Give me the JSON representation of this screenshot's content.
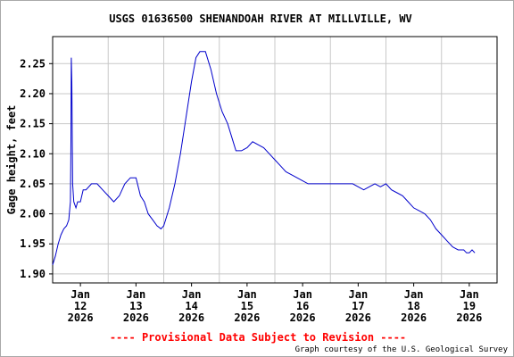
{
  "chart_data": {
    "type": "line",
    "title": "USGS 01636500 SHENANDOAH RIVER AT MILLVILLE, WV",
    "xlabel": "",
    "ylabel": "Gage height, feet",
    "ylim": [
      1.885,
      2.295
    ],
    "yticks": [
      1.9,
      1.95,
      2.0,
      2.05,
      2.1,
      2.15,
      2.2,
      2.25
    ],
    "ytick_labels": [
      "1.90",
      "1.95",
      "2.00",
      "2.05",
      "2.10",
      "2.15",
      "2.20",
      "2.25"
    ],
    "xlim": [
      0,
      8.0
    ],
    "xticks": [
      {
        "value": 0.5,
        "lines": [
          "Jan",
          "12",
          "2026"
        ]
      },
      {
        "value": 1.5,
        "lines": [
          "Jan",
          "13",
          "2026"
        ]
      },
      {
        "value": 2.5,
        "lines": [
          "Jan",
          "14",
          "2026"
        ]
      },
      {
        "value": 3.5,
        "lines": [
          "Jan",
          "15",
          "2026"
        ]
      },
      {
        "value": 4.5,
        "lines": [
          "Jan",
          "16",
          "2026"
        ]
      },
      {
        "value": 5.5,
        "lines": [
          "Jan",
          "17",
          "2026"
        ]
      },
      {
        "value": 6.5,
        "lines": [
          "Jan",
          "18",
          "2026"
        ]
      },
      {
        "value": 7.5,
        "lines": [
          "Jan",
          "19",
          "2026"
        ]
      }
    ],
    "grid": true,
    "line_color": "#0000cc",
    "series": [
      {
        "name": "",
        "points": [
          [
            0.0,
            1.915
          ],
          [
            0.05,
            1.93
          ],
          [
            0.1,
            1.95
          ],
          [
            0.15,
            1.965
          ],
          [
            0.2,
            1.975
          ],
          [
            0.25,
            1.98
          ],
          [
            0.29,
            1.99
          ],
          [
            0.32,
            2.02
          ],
          [
            0.33,
            2.12
          ],
          [
            0.335,
            2.26
          ],
          [
            0.345,
            2.22
          ],
          [
            0.36,
            2.05
          ],
          [
            0.38,
            2.02
          ],
          [
            0.42,
            2.01
          ],
          [
            0.45,
            2.02
          ],
          [
            0.5,
            2.02
          ],
          [
            0.55,
            2.04
          ],
          [
            0.6,
            2.04
          ],
          [
            0.7,
            2.05
          ],
          [
            0.8,
            2.05
          ],
          [
            0.9,
            2.04
          ],
          [
            1.0,
            2.03
          ],
          [
            1.1,
            2.02
          ],
          [
            1.2,
            2.03
          ],
          [
            1.3,
            2.05
          ],
          [
            1.4,
            2.06
          ],
          [
            1.5,
            2.06
          ],
          [
            1.58,
            2.03
          ],
          [
            1.65,
            2.02
          ],
          [
            1.72,
            2.0
          ],
          [
            1.8,
            1.99
          ],
          [
            1.88,
            1.98
          ],
          [
            1.95,
            1.975
          ],
          [
            2.0,
            1.98
          ],
          [
            2.1,
            2.01
          ],
          [
            2.2,
            2.05
          ],
          [
            2.3,
            2.1
          ],
          [
            2.4,
            2.16
          ],
          [
            2.5,
            2.22
          ],
          [
            2.58,
            2.26
          ],
          [
            2.65,
            2.27
          ],
          [
            2.75,
            2.27
          ],
          [
            2.85,
            2.24
          ],
          [
            2.95,
            2.2
          ],
          [
            3.05,
            2.17
          ],
          [
            3.15,
            2.15
          ],
          [
            3.25,
            2.12
          ],
          [
            3.3,
            2.105
          ],
          [
            3.4,
            2.105
          ],
          [
            3.5,
            2.11
          ],
          [
            3.6,
            2.12
          ],
          [
            3.7,
            2.115
          ],
          [
            3.8,
            2.11
          ],
          [
            3.9,
            2.1
          ],
          [
            4.0,
            2.09
          ],
          [
            4.1,
            2.08
          ],
          [
            4.2,
            2.07
          ],
          [
            4.3,
            2.065
          ],
          [
            4.4,
            2.06
          ],
          [
            4.5,
            2.055
          ],
          [
            4.6,
            2.05
          ],
          [
            4.7,
            2.05
          ],
          [
            4.8,
            2.05
          ],
          [
            4.9,
            2.05
          ],
          [
            5.0,
            2.05
          ],
          [
            5.1,
            2.05
          ],
          [
            5.2,
            2.05
          ],
          [
            5.3,
            2.05
          ],
          [
            5.4,
            2.05
          ],
          [
            5.5,
            2.045
          ],
          [
            5.6,
            2.04
          ],
          [
            5.7,
            2.045
          ],
          [
            5.8,
            2.05
          ],
          [
            5.9,
            2.045
          ],
          [
            6.0,
            2.05
          ],
          [
            6.1,
            2.04
          ],
          [
            6.2,
            2.035
          ],
          [
            6.3,
            2.03
          ],
          [
            6.4,
            2.02
          ],
          [
            6.5,
            2.01
          ],
          [
            6.6,
            2.005
          ],
          [
            6.7,
            2.0
          ],
          [
            6.8,
            1.99
          ],
          [
            6.9,
            1.975
          ],
          [
            7.0,
            1.965
          ],
          [
            7.1,
            1.955
          ],
          [
            7.2,
            1.945
          ],
          [
            7.3,
            1.94
          ],
          [
            7.4,
            1.94
          ],
          [
            7.45,
            1.935
          ],
          [
            7.5,
            1.935
          ],
          [
            7.55,
            1.94
          ],
          [
            7.6,
            1.935
          ]
        ]
      }
    ]
  },
  "footer": {
    "provisional": "---- Provisional Data Subject to Revision ----",
    "courtesy": "Graph courtesy of the U.S. Geological Survey"
  }
}
